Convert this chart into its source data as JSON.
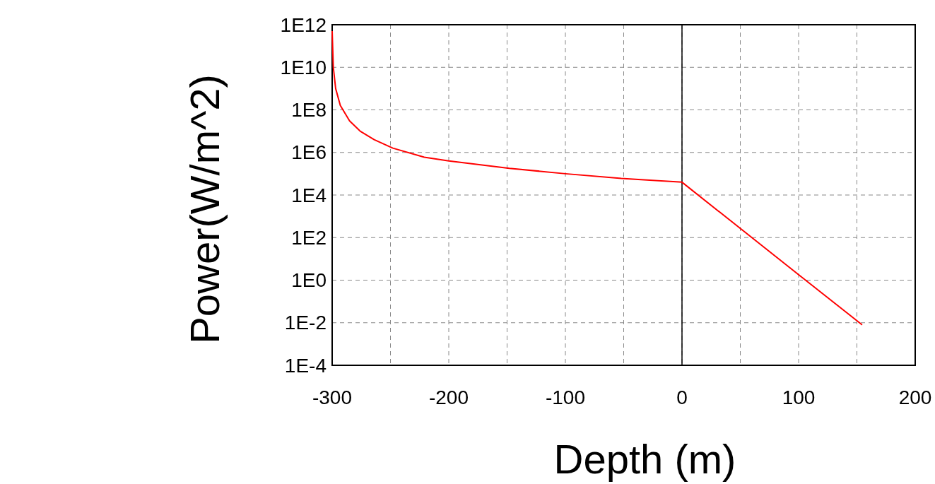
{
  "chart_data": {
    "type": "line",
    "xlabel": "Depth (m)",
    "ylabel": "Power(W/m^2)",
    "log": "y",
    "xlim": [
      -300,
      200
    ],
    "xticks": [
      -300,
      -200,
      -100,
      0,
      100,
      200
    ],
    "ylim": [
      0.0001,
      1000000000000.0
    ],
    "yticks": [
      {
        "value": 0.0001,
        "label": "1E-4"
      },
      {
        "value": 0.01,
        "label": "1E-2"
      },
      {
        "value": 1,
        "label": "1E0"
      },
      {
        "value": 100,
        "label": "1E2"
      },
      {
        "value": 10000.0,
        "label": "1E4"
      },
      {
        "value": 1000000.0,
        "label": "1E6"
      },
      {
        "value": 100000000.0,
        "label": "1E8"
      },
      {
        "value": 10000000000.0,
        "label": "1E10"
      },
      {
        "value": 1000000000000.0,
        "label": "1E12"
      }
    ],
    "grid": true,
    "ref_lines": [
      {
        "axis": "x",
        "value": 0,
        "color": "#000000"
      }
    ],
    "series": [
      {
        "color": "#ff0000",
        "x": [
          -300,
          -299,
          -297,
          -293,
          -285,
          -276,
          -264,
          -248,
          -221,
          -200,
          -148,
          -100,
          -52,
          0,
          100,
          154.5
        ],
        "values": [
          500000000000.0,
          10000000000.0,
          1000000000.0,
          160000000.0,
          30000000.0,
          10000000.0,
          4000000.0,
          1600000.0,
          600000.0,
          400000.0,
          180000.0,
          100000.0,
          60000.0,
          40000.0,
          1.8,
          0.008
        ]
      }
    ]
  }
}
